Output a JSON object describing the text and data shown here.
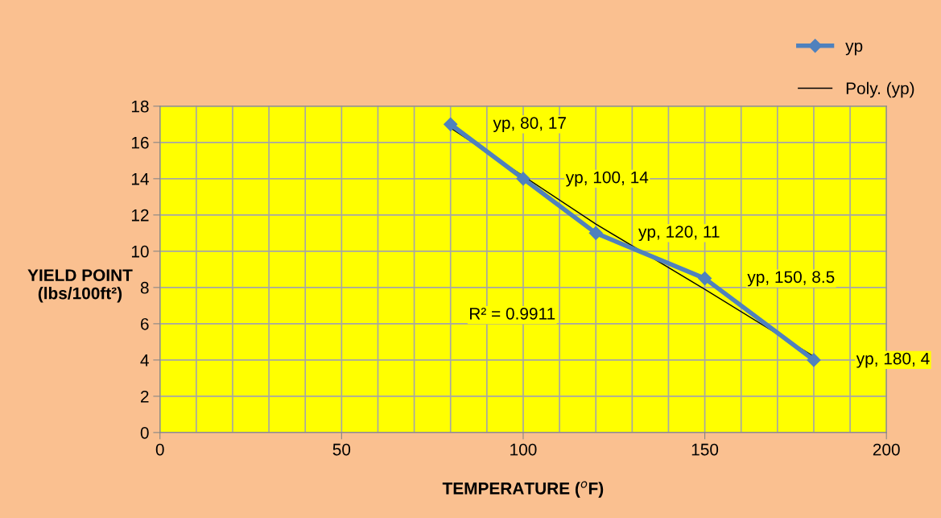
{
  "chart_data": {
    "type": "line",
    "xlabel": "TEMPERATURE ($^{o}$F)",
    "ylabel": "YIELD POINT\n(lbs/100ft²)",
    "xlim": [
      0,
      200
    ],
    "xticks": [
      0,
      {
        "value": 10,
        "label": null
      },
      {
        "value": 20,
        "label": null
      },
      {
        "value": 30,
        "label": null
      },
      {
        "value": 40,
        "label": null
      },
      50,
      {
        "value": 60,
        "label": null
      },
      {
        "value": 70,
        "label": null
      },
      {
        "value": 80,
        "label": null
      },
      {
        "value": 90,
        "label": null
      },
      100,
      {
        "value": 110,
        "label": null
      },
      {
        "value": 120,
        "label": null
      },
      {
        "value": 130,
        "label": null
      },
      {
        "value": 140,
        "label": null
      },
      150,
      {
        "value": 160,
        "label": null
      },
      {
        "value": 170,
        "label": null
      },
      {
        "value": 180,
        "label": null
      },
      {
        "value": 190,
        "label": null
      },
      200
    ],
    "ylim": [
      0,
      18
    ],
    "yticks": [
      0,
      2,
      4,
      6,
      8,
      10,
      12,
      14,
      16,
      18
    ],
    "grid": true,
    "legend": "top right",
    "series": [
      {
        "name": "yp",
        "color": "#4f81bd",
        "x": [
          80,
          100,
          120,
          150,
          180
        ],
        "values": [
          17,
          14,
          11,
          8.5,
          4
        ],
        "marker": "diamond",
        "line_style": "solid"
      },
      {
        "name": "Poly. (yp)",
        "color": "#000000",
        "x": [
          80,
          120,
          150,
          180
        ],
        "values": [
          16.8,
          11.5,
          7.9,
          4.2
        ],
        "marker": "none",
        "line_style": "solid"
      }
    ],
    "annotations": [
      {
        "text": "yp, 80, 17",
        "x": 80,
        "y": 17
      },
      {
        "text": "yp, 100, 14",
        "x": 100,
        "y": 14
      },
      {
        "text": "yp, 120, 11",
        "x": 120,
        "y": 11
      },
      {
        "text": "yp, 150, 8.5",
        "x": 150,
        "y": 8.5
      },
      {
        "text": "yp, 180, 4",
        "x": 180,
        "y": 4
      },
      "R² = 0.9911"
    ]
  }
}
